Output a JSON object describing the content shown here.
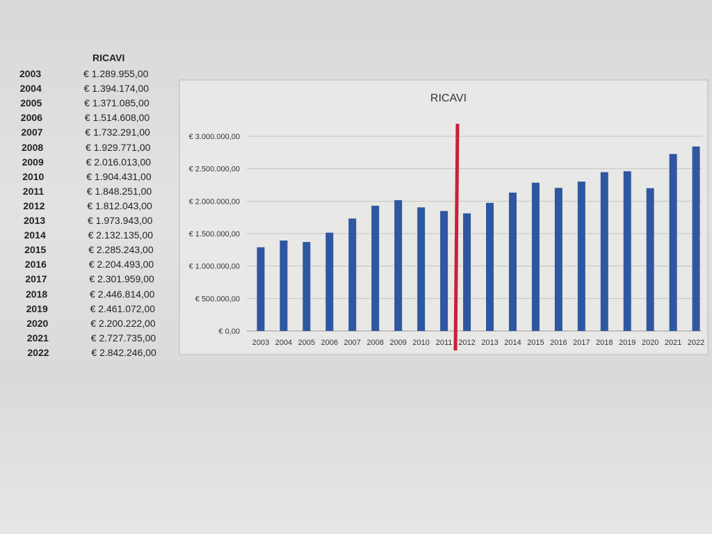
{
  "table": {
    "header": "RICAVI",
    "rows": [
      {
        "year": "2003",
        "value": "€ 1.289.955,00"
      },
      {
        "year": "2004",
        "value": "€ 1.394.174,00"
      },
      {
        "year": "2005",
        "value": "€ 1.371.085,00"
      },
      {
        "year": "2006",
        "value": "€ 1.514.608,00"
      },
      {
        "year": "2007",
        "value": "€ 1.732.291,00"
      },
      {
        "year": "2008",
        "value": "€ 1.929.771,00"
      },
      {
        "year": "2009",
        "value": "€ 2.016.013,00"
      },
      {
        "year": "2010",
        "value": "€ 1.904.431,00"
      },
      {
        "year": "2011",
        "value": "€ 1.848.251,00"
      },
      {
        "year": "2012",
        "value": "€ 1.812.043,00"
      },
      {
        "year": "2013",
        "value": "€ 1.973.943,00"
      },
      {
        "year": "2014",
        "value": "€ 2.132.135,00"
      },
      {
        "year": "2015",
        "value": "€ 2.285.243,00"
      },
      {
        "year": "2016",
        "value": "€ 2.204.493,00"
      },
      {
        "year": "2017",
        "value": "€ 2.301.959,00"
      },
      {
        "year": "2018",
        "value": "€ 2.446.814,00"
      },
      {
        "year": "2019",
        "value": "€ 2.461.072,00"
      },
      {
        "year": "2020",
        "value": "€ 2.200.222,00"
      },
      {
        "year": "2021",
        "value": "€ 2.727.735,00"
      },
      {
        "year": "2022",
        "value": "€ 2.842.246,00"
      }
    ]
  },
  "chart_data": {
    "type": "bar",
    "title": "RICAVI",
    "xlabel": "",
    "ylabel": "",
    "categories": [
      "2003",
      "2004",
      "2005",
      "2006",
      "2007",
      "2008",
      "2009",
      "2010",
      "2011",
      "2012",
      "2013",
      "2014",
      "2015",
      "2016",
      "2017",
      "2018",
      "2019",
      "2020",
      "2021",
      "2022"
    ],
    "values": [
      1289955,
      1394174,
      1371085,
      1514608,
      1732291,
      1929771,
      2016013,
      1904431,
      1848251,
      1812043,
      1973943,
      2132135,
      2285243,
      2204493,
      2301959,
      2446814,
      2461072,
      2200222,
      2727735,
      2842246
    ],
    "ylim": [
      0,
      3000000
    ],
    "yticks": [
      0,
      500000,
      1000000,
      1500000,
      2000000,
      2500000,
      3000000
    ],
    "ytick_labels": [
      "€ 0,00",
      "€ 500.000,00",
      "€ 1.000.000,00",
      "€ 1.500.000,00",
      "€ 2.000.000,00",
      "€ 2.500.000,00",
      "€ 3.000.000,00"
    ],
    "grid": true,
    "legend": "none",
    "bar_color": "#2f56a0",
    "marker_line": {
      "between": [
        "2011",
        "2012"
      ],
      "color": "#c8203c"
    }
  }
}
